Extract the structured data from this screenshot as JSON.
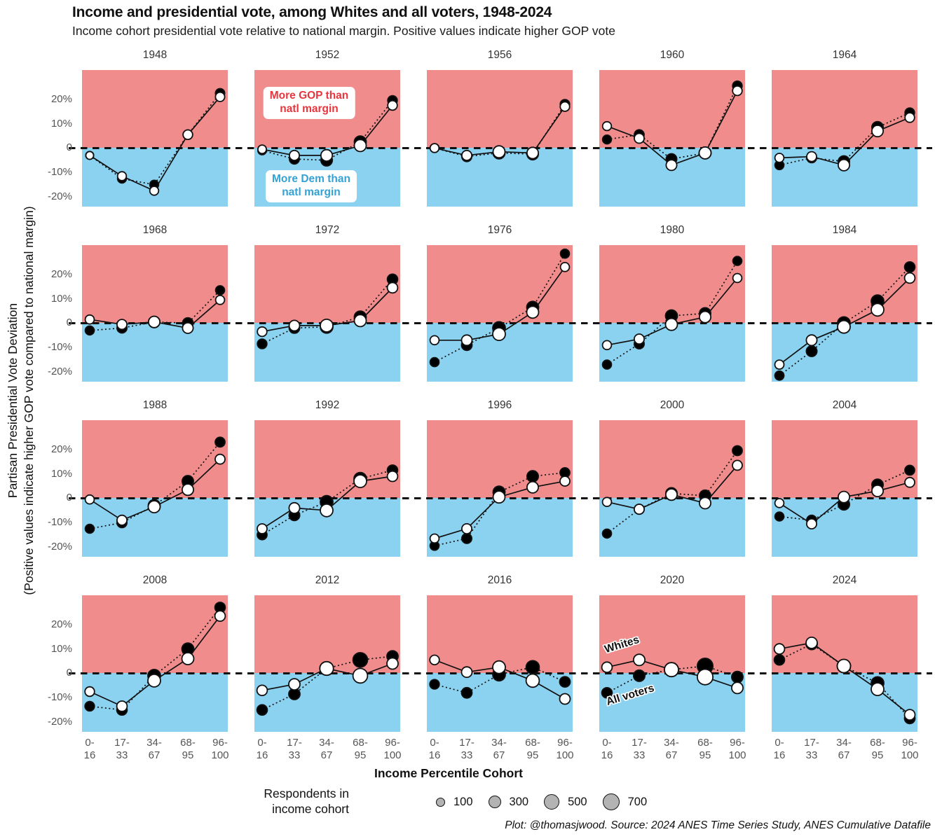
{
  "header": {
    "title": "Income and presidential vote, among Whites and all voters, 1948-2024",
    "subtitle": "Income cohort presidential vote relative to national margin. Positive values indicate higher GOP vote"
  },
  "y_axis": {
    "label_line1": "Partisan Presidential Vote Deviation",
    "label_line2": "(Positive values indicate higher GOP vote compared to national margin)",
    "ticks": [
      "20%",
      "10%",
      "0",
      "-10%",
      "-20%"
    ],
    "tick_values": [
      20,
      10,
      0,
      -10,
      -20
    ]
  },
  "x_axis": {
    "title": "Income Percentile Cohort",
    "tick_line1": [
      "0-",
      "17-",
      "34-",
      "68-",
      "96-"
    ],
    "tick_line2": [
      "16",
      "33",
      "67",
      "95",
      "100"
    ]
  },
  "annotations": {
    "gop_box": "More GOP than\nnatl margin",
    "dem_box": "More Dem than\nnatl margin",
    "whites_label": "Whites",
    "all_voters_label": "All voters"
  },
  "legend": {
    "title_line1": "Respondents in",
    "title_line2": "income cohort",
    "sizes": [
      100,
      300,
      500,
      700
    ]
  },
  "caption": "Plot: @thomasjwood. Source: 2024 ANES Time Series Study, ANES Cumulative Datafile",
  "colors": {
    "gop_bg": "#F18C8C",
    "dem_bg": "#8BD2F0",
    "gop_text": "#E8353D",
    "dem_text": "#35A2D5",
    "whites_fill": "#FFFFFF",
    "all_voters_fill": "#000000",
    "line_stroke": "#111111"
  },
  "chart_data": {
    "type": "line",
    "categories": [
      "0-16",
      "17-33",
      "34-67",
      "68-95",
      "96-100"
    ],
    "ylim": [
      -24,
      32
    ],
    "unit": "percent deviation from national margin",
    "series_styles": [
      {
        "name": "Whites",
        "marker": "open circle",
        "line": "solid"
      },
      {
        "name": "All voters",
        "marker": "filled circle",
        "line": "dotted"
      }
    ],
    "panels": [
      {
        "year": "1948",
        "whites": [
          -3,
          -11.5,
          -17.5,
          5.5,
          21
        ],
        "all_voters": [
          -3,
          -12.5,
          -15,
          5.5,
          22.5
        ],
        "sizes": [
          110,
          160,
          160,
          210,
          190
        ]
      },
      {
        "year": "1952",
        "whites": [
          -0.5,
          -3,
          -3,
          1,
          17.5
        ],
        "all_voters": [
          -1,
          -4.5,
          -5,
          2.5,
          19.5
        ],
        "sizes": [
          150,
          230,
          340,
          380,
          210
        ]
      },
      {
        "year": "1956",
        "whites": [
          0,
          -3,
          -1.5,
          -2,
          17
        ],
        "all_voters": [
          0,
          -3.5,
          -2,
          -2.5,
          18
        ],
        "sizes": [
          160,
          230,
          380,
          330,
          200
        ]
      },
      {
        "year": "1960",
        "whites": [
          9,
          4,
          -7,
          -2,
          23.5
        ],
        "all_voters": [
          3.5,
          5.5,
          -4.5,
          -2,
          25.5
        ],
        "sizes": [
          160,
          220,
          280,
          380,
          210
        ]
      },
      {
        "year": "1964",
        "whites": [
          -4,
          -3.5,
          -7,
          7,
          12.5
        ],
        "all_voters": [
          -7,
          -4,
          -5.5,
          8.5,
          14.5
        ],
        "sizes": [
          170,
          220,
          330,
          330,
          210
        ]
      },
      {
        "year": "1968",
        "whites": [
          1.5,
          -0.5,
          0.5,
          -2,
          9.5
        ],
        "all_voters": [
          -3,
          -2,
          0.5,
          0,
          13.5
        ],
        "sizes": [
          170,
          230,
          330,
          280,
          170
        ]
      },
      {
        "year": "1972",
        "whites": [
          -3.5,
          -1,
          -1,
          1,
          14.5
        ],
        "all_voters": [
          -8.5,
          -2,
          -1.5,
          2.5,
          18
        ],
        "sizes": [
          210,
          270,
          430,
          380,
          260
        ]
      },
      {
        "year": "1976",
        "whites": [
          -7,
          -7,
          -4.5,
          4.5,
          23
        ],
        "all_voters": [
          -16,
          -9,
          -2,
          6.5,
          28.5
        ],
        "sizes": [
          170,
          270,
          430,
          380,
          170
        ]
      },
      {
        "year": "1980",
        "whites": [
          -9,
          -6.5,
          -0.5,
          2.5,
          18.5
        ],
        "all_voters": [
          -17,
          -8.5,
          3,
          4,
          25.5
        ],
        "sizes": [
          170,
          230,
          380,
          330,
          170
        ]
      },
      {
        "year": "1984",
        "whites": [
          -17,
          -7,
          -1.5,
          5.5,
          18.5
        ],
        "all_voters": [
          -21.5,
          -11.5,
          0,
          9,
          23
        ],
        "sizes": [
          180,
          280,
          430,
          430,
          260
        ]
      },
      {
        "year": "1988",
        "whites": [
          -0.5,
          -9,
          -3.5,
          3.5,
          16
        ],
        "all_voters": [
          -12.5,
          -10,
          -3,
          7,
          23
        ],
        "sizes": [
          170,
          230,
          380,
          330,
          220
        ]
      },
      {
        "year": "1992",
        "whites": [
          -12.5,
          -4,
          -5,
          7,
          9
        ],
        "all_voters": [
          -15,
          -7,
          -1.5,
          8,
          11.5
        ],
        "sizes": [
          220,
          280,
          430,
          430,
          260
        ]
      },
      {
        "year": "1996",
        "whites": [
          -16.5,
          -12.5,
          0.5,
          4.5,
          7
        ],
        "all_voters": [
          -19.5,
          -16.5,
          2.5,
          9,
          10.5
        ],
        "sizes": [
          170,
          230,
          380,
          330,
          220
        ]
      },
      {
        "year": "2000",
        "whites": [
          -1.5,
          -4.5,
          1.5,
          -2,
          13.5
        ],
        "all_voters": [
          -14.5,
          -4.5,
          2,
          1,
          19.5
        ],
        "sizes": [
          170,
          230,
          330,
          330,
          220
        ]
      },
      {
        "year": "2004",
        "whites": [
          -2,
          -10.5,
          0.5,
          3,
          6.5
        ],
        "all_voters": [
          -7.5,
          -9,
          -2.5,
          5.5,
          11.5
        ],
        "sizes": [
          170,
          230,
          330,
          330,
          220
        ]
      },
      {
        "year": "2008",
        "whites": [
          -7.5,
          -13.5,
          -3,
          6,
          23.5
        ],
        "all_voters": [
          -13.5,
          -15,
          -1,
          10,
          27
        ],
        "sizes": [
          210,
          260,
          430,
          380,
          260
        ]
      },
      {
        "year": "2012",
        "whites": [
          -7,
          -4.5,
          2,
          -1,
          4
        ],
        "all_voters": [
          -15,
          -8.5,
          2,
          5.5,
          7
        ],
        "sizes": [
          260,
          320,
          520,
          620,
          320
        ]
      },
      {
        "year": "2016",
        "whites": [
          5.5,
          0.5,
          2.5,
          -3,
          -10.5
        ],
        "all_voters": [
          -4.5,
          -8,
          -0.5,
          2.5,
          -3.5
        ],
        "sizes": [
          210,
          270,
          430,
          480,
          270
        ]
      },
      {
        "year": "2020",
        "whites": [
          2.5,
          5.5,
          1.5,
          -1.5,
          -6
        ],
        "all_voters": [
          -8,
          -1,
          1.5,
          3,
          -1.5
        ],
        "sizes": [
          260,
          330,
          560,
          720,
          330
        ]
      },
      {
        "year": "2024",
        "whites": [
          10,
          12.5,
          3,
          -6.5,
          -17
        ],
        "all_voters": [
          5.5,
          12,
          3,
          -4,
          -18.5
        ],
        "sizes": [
          260,
          320,
          500,
          430,
          270
        ]
      }
    ]
  }
}
